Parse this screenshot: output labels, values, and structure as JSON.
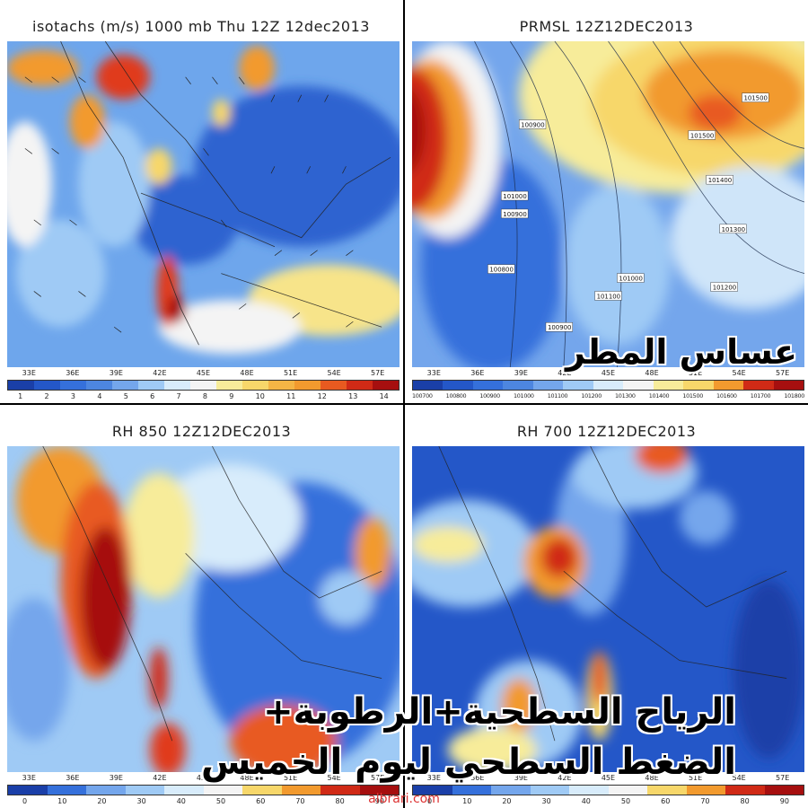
{
  "panels": [
    {
      "title": "isotachs (m/s) 1000 mb Thu 12Z 12dec2013",
      "lon_ticks": [
        "33E",
        "36E",
        "39E",
        "42E",
        "45E",
        "48E",
        "51E",
        "54E",
        "57E"
      ],
      "colorbar_ticks": [
        "1",
        "2",
        "3",
        "4",
        "5",
        "6",
        "7",
        "8",
        "9",
        "10",
        "11",
        "12",
        "13",
        "14"
      ]
    },
    {
      "title": "PRMSL 12Z12DEC2013",
      "lon_ticks": [
        "33E",
        "36E",
        "39E",
        "42E",
        "45E",
        "48E",
        "51E",
        "54E",
        "57E"
      ],
      "colorbar_ticks": [
        "100700",
        "100800",
        "100900",
        "101000",
        "101100",
        "101200",
        "101300",
        "101400",
        "101500",
        "101600",
        "101700",
        "101800"
      ],
      "isobar_labels": [
        "100900",
        "101000",
        "100900",
        "100800",
        "100900",
        "101000",
        "101100",
        "101500",
        "101500",
        "101400",
        "101300",
        "101200"
      ]
    },
    {
      "title": "RH 850 12Z12DEC2013",
      "lon_ticks": [
        "33E",
        "36E",
        "39E",
        "42E",
        "45E",
        "48E",
        "51E",
        "54E",
        "57E"
      ],
      "colorbar_ticks": [
        "0",
        "10",
        "20",
        "30",
        "40",
        "50",
        "60",
        "70",
        "80",
        "90"
      ]
    },
    {
      "title": "RH 700 12Z12DEC2013",
      "lon_ticks": [
        "33E",
        "36E",
        "39E",
        "42E",
        "45E",
        "48E",
        "51E",
        "54E",
        "57E"
      ],
      "colorbar_ticks": [
        "0",
        "10",
        "20",
        "30",
        "40",
        "50",
        "60",
        "70",
        "80",
        "90"
      ]
    }
  ],
  "overlay": {
    "brand": "عساس المطر",
    "headline_line1": "الرياح السطحية+الرطوبة+",
    "headline_line2": "الضغط السطحي ليوم الخميس",
    "watermark": "albrari.com"
  },
  "colors": {
    "deep_blue": "#1f4fc0",
    "mid_blue": "#4d86e0",
    "light_blue": "#9fcaf5",
    "white": "#f2f2f2",
    "yellow": "#f7d76a",
    "orange": "#f29a2e",
    "red": "#e03a1e",
    "dark_red": "#a60f0f"
  }
}
